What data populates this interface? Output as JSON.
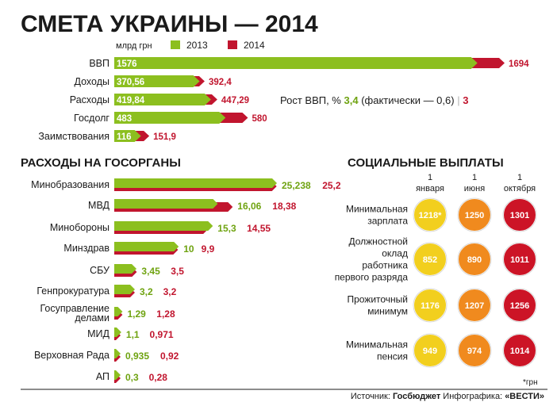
{
  "title": "СМЕТА УКРАИНЫ — 2014",
  "colors": {
    "y2013": "#8cbf1f",
    "y2014": "#c1152e",
    "dark": "#1a1a1a"
  },
  "chart_data": [
    {
      "type": "bar",
      "name": "budget",
      "unit": "млрд грн",
      "legend": [
        "2013",
        "2014"
      ],
      "categories": [
        "ВВП",
        "Доходы",
        "Расходы",
        "Госдолг",
        "Заимствования"
      ],
      "series": [
        {
          "name": "2013",
          "values": [
            1576,
            370.56,
            419.84,
            483,
            116
          ],
          "labels": [
            "1576",
            "370,56",
            "419,84",
            "483",
            "116"
          ]
        },
        {
          "name": "2014",
          "values": [
            1694,
            392.4,
            447.29,
            580,
            151.9
          ],
          "labels": [
            "1694",
            "392,4",
            "447,29",
            "580",
            "151,9"
          ]
        }
      ]
    },
    {
      "type": "bar",
      "name": "government-bodies",
      "title": "РАСХОДЫ НА ГОСОРГАНЫ",
      "categories": [
        "Минобразования",
        "МВД",
        "Минобороны",
        "Минздрав",
        "СБУ",
        "Генпрокуратура",
        "Госуправление делами",
        "МИД",
        "Верховная Рада",
        "АП"
      ],
      "series": [
        {
          "name": "2013",
          "values": [
            25.238,
            16.06,
            15.3,
            10,
            3.45,
            3.2,
            1.29,
            1.1,
            0.935,
            0.3
          ],
          "labels": [
            "25,238",
            "16,06",
            "15,3",
            "10",
            "3,45",
            "3,2",
            "1,29",
            "1,1",
            "0,935",
            "0,3"
          ]
        },
        {
          "name": "2014",
          "values": [
            25.2,
            18.38,
            14.55,
            9.9,
            3.5,
            3.2,
            1.28,
            0.971,
            0.92,
            0.28
          ],
          "labels": [
            "25,2",
            "18,38",
            "14,55",
            "9,9",
            "3,5",
            "3,2",
            "1,28",
            "0,971",
            "0,92",
            "0,28"
          ]
        }
      ]
    },
    {
      "type": "table",
      "name": "social-payments",
      "title": "СОЦИАЛЬНЫЕ ВЫПЛАТЫ",
      "columns": [
        {
          "day": "1",
          "month": "января",
          "color": "#f2cf1e"
        },
        {
          "day": "1",
          "month": "июня",
          "color": "#f08a1e"
        },
        {
          "day": "1",
          "month": "октября",
          "color": "#cc1426"
        }
      ],
      "rows": [
        {
          "label": [
            "Минимальная",
            "зарплата"
          ],
          "values": [
            "1218*",
            "1250",
            "1301"
          ]
        },
        {
          "label": [
            "Должностной",
            "оклад",
            "работника",
            "первого разряда"
          ],
          "values": [
            "852",
            "890",
            "1011"
          ]
        },
        {
          "label": [
            "Прожиточный",
            "минимум"
          ],
          "values": [
            "1176",
            "1207",
            "1256"
          ]
        },
        {
          "label": [
            "Минимальная",
            "пенсия"
          ],
          "values": [
            "949",
            "974",
            "1014"
          ]
        }
      ],
      "footnote": "*грн"
    }
  ],
  "gdp_growth": {
    "prefix": "Рост ВВП, %",
    "value_2013": "3,4",
    "note": "(фактически — 0,6)",
    "value_2014": "3"
  },
  "footer": {
    "source_label": "Источник:",
    "source": "Госбюджет",
    "graphics_label": "Инфографика:",
    "graphics": "«ВЕСТИ»"
  }
}
